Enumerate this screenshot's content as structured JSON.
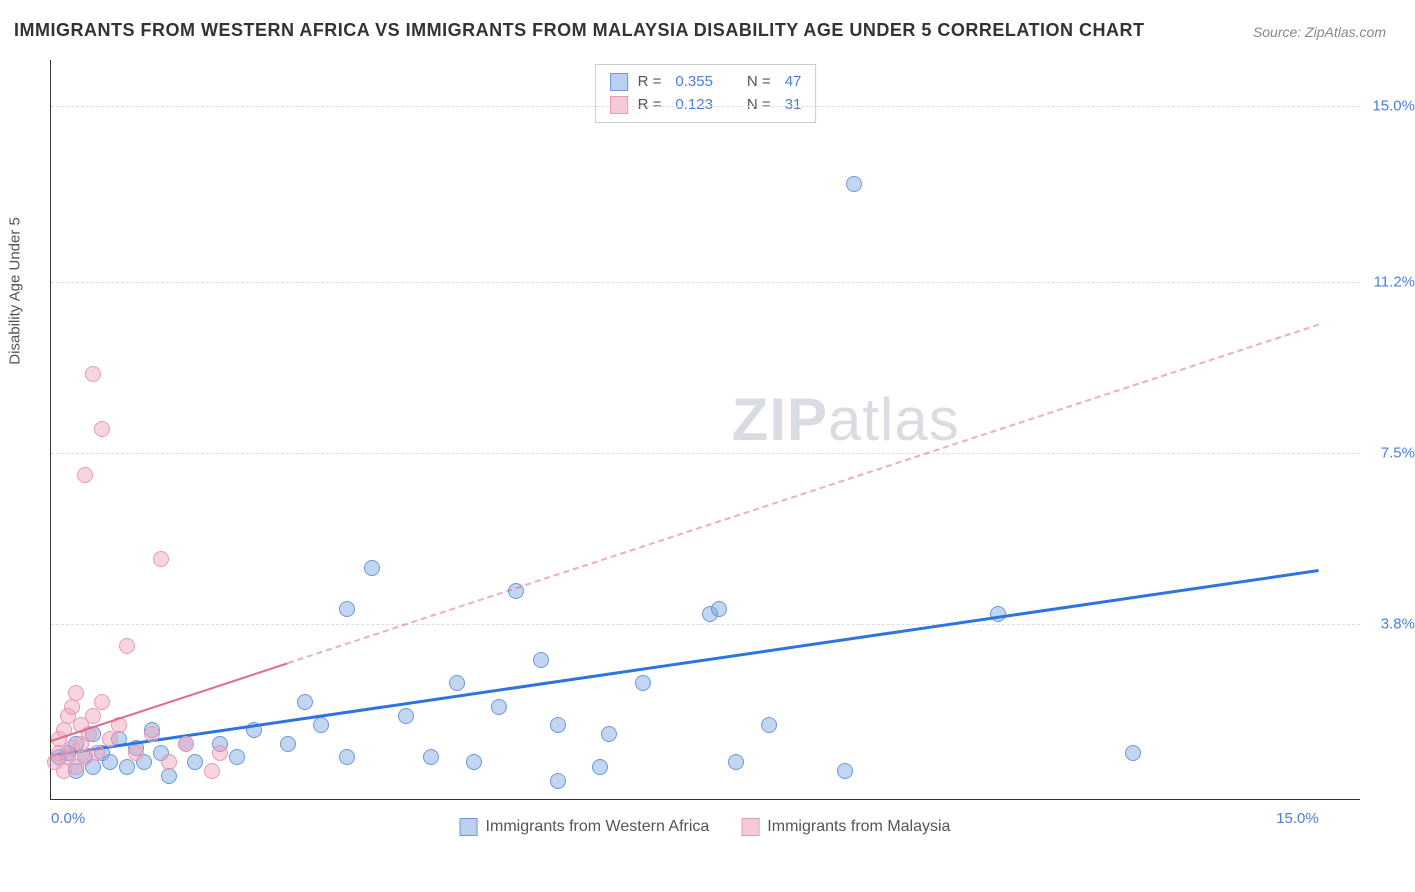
{
  "title": "IMMIGRANTS FROM WESTERN AFRICA VS IMMIGRANTS FROM MALAYSIA DISABILITY AGE UNDER 5 CORRELATION CHART",
  "source": "Source: ZipAtlas.com",
  "watermark_prefix": "ZIP",
  "watermark_suffix": "atlas",
  "chart": {
    "type": "scatter",
    "ylabel": "Disability Age Under 5",
    "xlim": [
      0,
      15.5
    ],
    "ylim": [
      0,
      16
    ],
    "xticks": [
      {
        "v": 0,
        "l": "0.0%"
      },
      {
        "v": 15,
        "l": "15.0%"
      }
    ],
    "yticks": [
      {
        "v": 3.8,
        "l": "3.8%"
      },
      {
        "v": 7.5,
        "l": "7.5%"
      },
      {
        "v": 11.2,
        "l": "11.2%"
      },
      {
        "v": 15,
        "l": "15.0%"
      }
    ],
    "grid_color": "#dddddd",
    "bg_color": "#ffffff"
  },
  "series": [
    {
      "name": "Immigrants from Western Africa",
      "color_fill": "rgba(120,165,225,0.45)",
      "color_stroke": "#6a99d9",
      "swatch_fill": "#b9d0ef",
      "swatch_stroke": "#6a99d9",
      "marker_radius": 8,
      "r_label": "R =",
      "r_value": "0.355",
      "n_label": "N =",
      "n_value": "47",
      "trend": {
        "x1": 0,
        "y1": 1.0,
        "x2": 15,
        "y2": 5.0,
        "solid_until_x": 15,
        "color": "#2d74e0",
        "width": 3
      },
      "points": [
        [
          0.1,
          0.9
        ],
        [
          0.2,
          1.0
        ],
        [
          0.3,
          0.6
        ],
        [
          0.3,
          1.2
        ],
        [
          0.4,
          0.9
        ],
        [
          0.5,
          1.4
        ],
        [
          0.5,
          0.7
        ],
        [
          0.6,
          1.0
        ],
        [
          0.7,
          0.8
        ],
        [
          0.8,
          1.3
        ],
        [
          0.9,
          0.7
        ],
        [
          1.0,
          1.1
        ],
        [
          1.1,
          0.8
        ],
        [
          1.2,
          1.5
        ],
        [
          1.3,
          1.0
        ],
        [
          1.4,
          0.5
        ],
        [
          1.6,
          1.2
        ],
        [
          1.7,
          0.8
        ],
        [
          2.0,
          1.2
        ],
        [
          2.2,
          0.9
        ],
        [
          2.4,
          1.5
        ],
        [
          2.8,
          1.2
        ],
        [
          3.0,
          2.1
        ],
        [
          3.2,
          1.6
        ],
        [
          3.5,
          4.1
        ],
        [
          3.5,
          0.9
        ],
        [
          3.8,
          5.0
        ],
        [
          4.2,
          1.8
        ],
        [
          4.5,
          0.9
        ],
        [
          4.8,
          2.5
        ],
        [
          5.0,
          0.8
        ],
        [
          5.3,
          2.0
        ],
        [
          5.5,
          4.5
        ],
        [
          5.8,
          3.0
        ],
        [
          6.0,
          0.4
        ],
        [
          6.0,
          1.6
        ],
        [
          6.5,
          0.7
        ],
        [
          6.6,
          1.4
        ],
        [
          7.0,
          2.5
        ],
        [
          7.8,
          4.0
        ],
        [
          7.9,
          4.1
        ],
        [
          8.1,
          0.8
        ],
        [
          8.5,
          1.6
        ],
        [
          9.4,
          0.6
        ],
        [
          9.5,
          13.3
        ],
        [
          11.2,
          4.0
        ],
        [
          12.8,
          1.0
        ]
      ]
    },
    {
      "name": "Immigrants from Malaysia",
      "color_fill": "rgba(240,160,185,0.45)",
      "color_stroke": "#e89ab5",
      "swatch_fill": "#f5c9d7",
      "swatch_stroke": "#e89ab5",
      "marker_radius": 8,
      "r_label": "R =",
      "r_value": "0.123",
      "n_label": "N =",
      "n_value": "31",
      "trend": {
        "x1": 0,
        "y1": 1.3,
        "x2": 15,
        "y2": 10.3,
        "solid_until_x": 2.8,
        "color": "#e26a8e",
        "width": 2.5
      },
      "points": [
        [
          0.05,
          0.8
        ],
        [
          0.1,
          1.0
        ],
        [
          0.1,
          1.3
        ],
        [
          0.15,
          0.6
        ],
        [
          0.15,
          1.5
        ],
        [
          0.2,
          0.9
        ],
        [
          0.2,
          1.8
        ],
        [
          0.25,
          1.1
        ],
        [
          0.25,
          2.0
        ],
        [
          0.3,
          0.7
        ],
        [
          0.3,
          2.3
        ],
        [
          0.35,
          1.2
        ],
        [
          0.35,
          1.6
        ],
        [
          0.4,
          0.9
        ],
        [
          0.4,
          7.0
        ],
        [
          0.45,
          1.4
        ],
        [
          0.5,
          9.2
        ],
        [
          0.5,
          1.8
        ],
        [
          0.55,
          1.0
        ],
        [
          0.6,
          8.0
        ],
        [
          0.6,
          2.1
        ],
        [
          0.7,
          1.3
        ],
        [
          0.8,
          1.6
        ],
        [
          0.9,
          3.3
        ],
        [
          1.0,
          1.0
        ],
        [
          1.2,
          1.4
        ],
        [
          1.3,
          5.2
        ],
        [
          1.4,
          0.8
        ],
        [
          1.6,
          1.2
        ],
        [
          1.9,
          0.6
        ],
        [
          2.0,
          1.0
        ]
      ]
    }
  ],
  "legend_bottom": [
    {
      "swatch_fill": "#b9d0ef",
      "swatch_stroke": "#6a99d9",
      "label": "Immigrants from Western Africa"
    },
    {
      "swatch_fill": "#f5c9d7",
      "swatch_stroke": "#e89ab5",
      "label": "Immigrants from Malaysia"
    }
  ]
}
